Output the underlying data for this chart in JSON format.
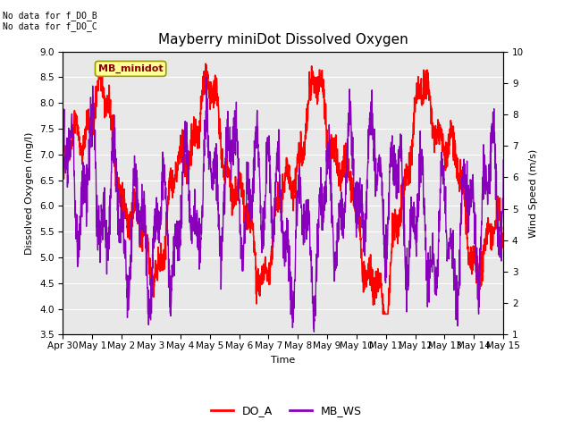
{
  "title": "Mayberry miniDot Dissolved Oxygen",
  "xlabel": "Time",
  "ylabel_left": "Dissolved Oxygen (mg/l)",
  "ylabel_right": "Wind Speed (m/s)",
  "ylim_left": [
    3.5,
    9.0
  ],
  "ylim_right": [
    1.0,
    10.0
  ],
  "yticks_left": [
    3.5,
    4.0,
    4.5,
    5.0,
    5.5,
    6.0,
    6.5,
    7.0,
    7.5,
    8.0,
    8.5,
    9.0
  ],
  "yticks_right": [
    1.0,
    2.0,
    3.0,
    4.0,
    5.0,
    6.0,
    7.0,
    8.0,
    9.0,
    10.0
  ],
  "xtick_labels": [
    "Apr 30",
    "May 1",
    "May 2",
    "May 3",
    "May 4",
    "May 5",
    "May 6",
    "May 7",
    "May 8",
    "May 9",
    "May 10",
    "May 11",
    "May 12",
    "May 13",
    "May 14",
    "May 15"
  ],
  "do_color": "#ff0000",
  "ws_color": "#8800bb",
  "background_color": "#ffffff",
  "plot_bg_color": "#e8e8e8",
  "grid_color": "#ffffff",
  "annotation_top": "No data for f_DO_B\nNo data for f_DO_C",
  "legend_box_label": "MB_minidot",
  "legend_items": [
    "DO_A",
    "MB_WS"
  ],
  "linewidth_do": 1.2,
  "linewidth_ws": 1.0,
  "title_fontsize": 11,
  "axis_label_fontsize": 8,
  "tick_fontsize": 7.5
}
